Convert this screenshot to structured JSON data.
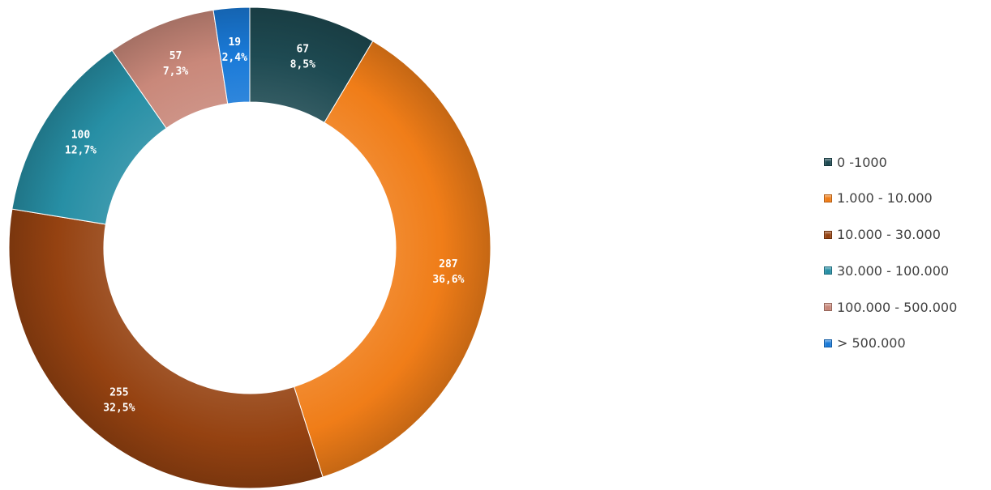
{
  "chart_data": {
    "type": "pie",
    "variant": "donut",
    "title": "",
    "legend_position": "right",
    "slices": [
      {
        "label": "0 -1000",
        "value": 67,
        "percent_label": "8,5%",
        "color": "#1e4a52"
      },
      {
        "label": "1.000 - 10.000",
        "value": 287,
        "percent_label": "36,6%",
        "color": "#f07d18"
      },
      {
        "label": "10.000 - 30.000",
        "value": 255,
        "percent_label": "32,5%",
        "color": "#954211"
      },
      {
        "label": "30.000 - 100.000",
        "value": 100,
        "percent_label": "12,7%",
        "color": "#278fa5"
      },
      {
        "label": "100.000 - 500.000",
        "value": 57,
        "percent_label": "7,3%",
        "color": "#c9887a"
      },
      {
        "label": "> 500.000",
        "value": 19,
        "percent_label": "2,4%",
        "color": "#1a7ad8"
      }
    ]
  }
}
